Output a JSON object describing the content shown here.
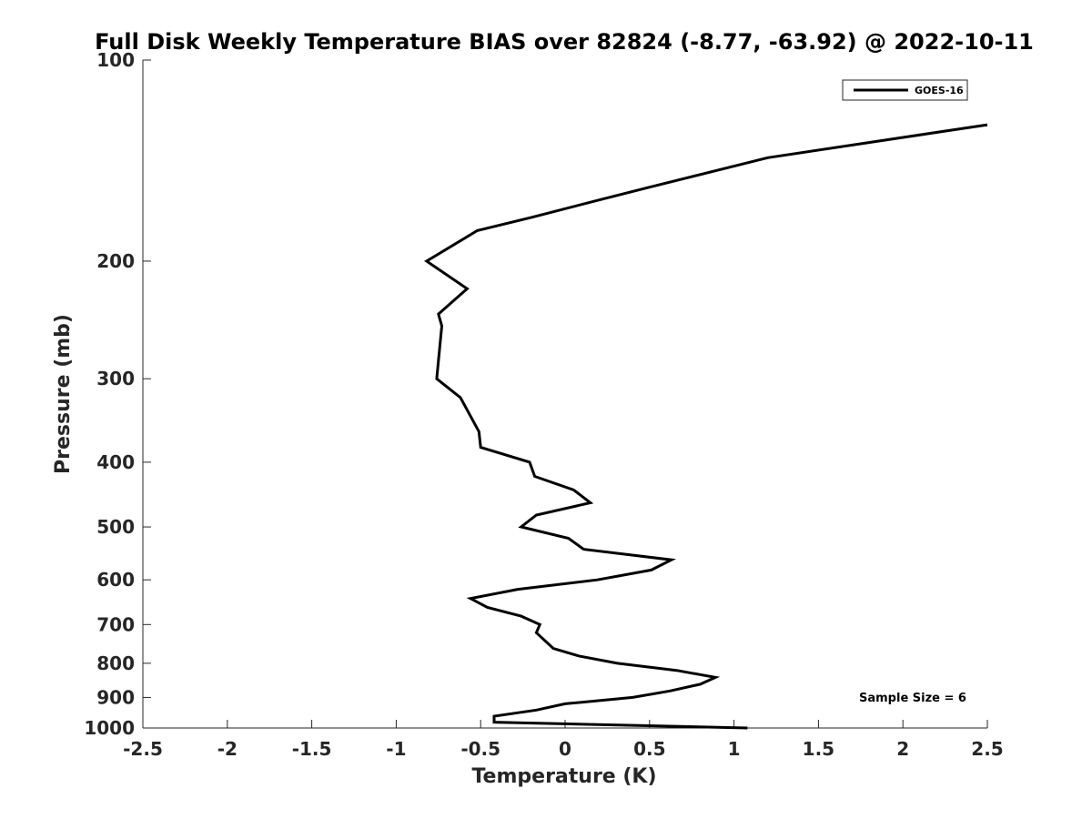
{
  "chart_data": {
    "type": "line",
    "title": "Full Disk Weekly Temperature BIAS over 82824 (-8.77, -63.92) @ 2022-10-11",
    "xlabel": "Temperature (K)",
    "ylabel": "Pressure (mb)",
    "xlim": [
      -2.5,
      2.5
    ],
    "ylim": [
      1000,
      100
    ],
    "yscale": "log",
    "y_reversed": true,
    "x_ticks": [
      "-2.5",
      "-2",
      "-1.5",
      "-1",
      "-0.5",
      "0",
      "0.5",
      "1",
      "1.5",
      "2",
      "2.5"
    ],
    "x_tick_values": [
      -2.5,
      -2,
      -1.5,
      -1,
      -0.5,
      0,
      0.5,
      1,
      1.5,
      2,
      2.5
    ],
    "y_ticks": [
      "100",
      "200",
      "300",
      "400",
      "500",
      "600",
      "700",
      "800",
      "900",
      "1000"
    ],
    "y_tick_values": [
      100,
      200,
      300,
      400,
      500,
      600,
      700,
      800,
      900,
      1000
    ],
    "grid": false,
    "legend_position": "top-right",
    "annotation": "Sample Size = 6",
    "series": [
      {
        "name": "GOES-16",
        "color": "#000000",
        "points": [
          {
            "x": 2.5,
            "y": 125
          },
          {
            "x": 1.2,
            "y": 140
          },
          {
            "x": 0.5,
            "y": 155
          },
          {
            "x": 0.2,
            "y": 162
          },
          {
            "x": -0.2,
            "y": 172
          },
          {
            "x": -0.52,
            "y": 180
          },
          {
            "x": -0.82,
            "y": 200
          },
          {
            "x": -0.58,
            "y": 220
          },
          {
            "x": -0.75,
            "y": 240
          },
          {
            "x": -0.73,
            "y": 250
          },
          {
            "x": -0.76,
            "y": 300
          },
          {
            "x": -0.62,
            "y": 320
          },
          {
            "x": -0.51,
            "y": 360
          },
          {
            "x": -0.5,
            "y": 380
          },
          {
            "x": -0.21,
            "y": 400
          },
          {
            "x": -0.18,
            "y": 420
          },
          {
            "x": 0.05,
            "y": 440
          },
          {
            "x": 0.15,
            "y": 460
          },
          {
            "x": -0.17,
            "y": 480
          },
          {
            "x": -0.26,
            "y": 500
          },
          {
            "x": 0.02,
            "y": 520
          },
          {
            "x": 0.11,
            "y": 540
          },
          {
            "x": 0.63,
            "y": 560
          },
          {
            "x": 0.51,
            "y": 580
          },
          {
            "x": 0.19,
            "y": 600
          },
          {
            "x": -0.28,
            "y": 620
          },
          {
            "x": -0.56,
            "y": 640
          },
          {
            "x": -0.46,
            "y": 660
          },
          {
            "x": -0.26,
            "y": 680
          },
          {
            "x": -0.15,
            "y": 700
          },
          {
            "x": -0.17,
            "y": 720
          },
          {
            "x": -0.07,
            "y": 760
          },
          {
            "x": 0.08,
            "y": 780
          },
          {
            "x": 0.31,
            "y": 800
          },
          {
            "x": 0.66,
            "y": 820
          },
          {
            "x": 0.89,
            "y": 840
          },
          {
            "x": 0.8,
            "y": 860
          },
          {
            "x": 0.62,
            "y": 880
          },
          {
            "x": 0.4,
            "y": 900
          },
          {
            "x": 0.0,
            "y": 920
          },
          {
            "x": -0.17,
            "y": 940
          },
          {
            "x": -0.42,
            "y": 960
          },
          {
            "x": -0.42,
            "y": 980
          },
          {
            "x": 1.08,
            "y": 1000
          }
        ]
      }
    ]
  }
}
